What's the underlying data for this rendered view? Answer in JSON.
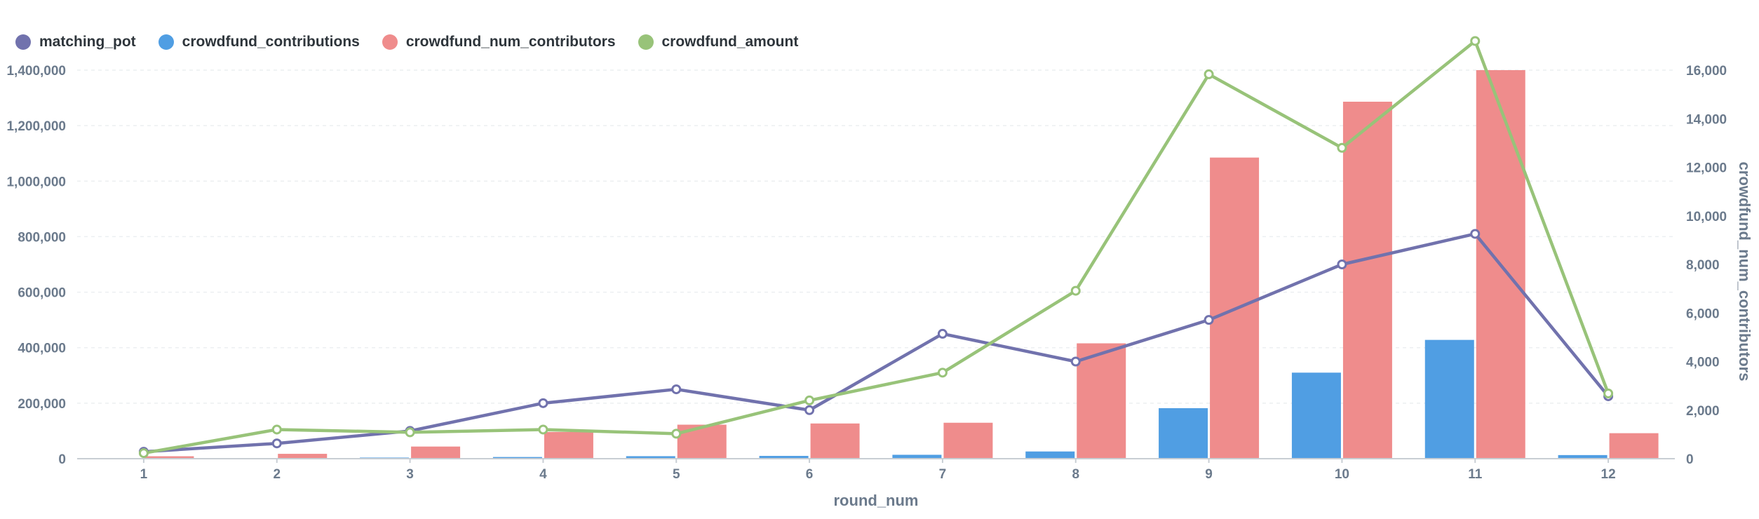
{
  "legend": [
    {
      "label": "matching_pot",
      "color": "#7172ad"
    },
    {
      "label": "crowdfund_contributions",
      "color": "#509ee3"
    },
    {
      "label": "crowdfund_num_contributors",
      "color": "#ef8c8c"
    },
    {
      "label": "crowdfund_amount",
      "color": "#98c379"
    }
  ],
  "chart_data": {
    "type": "bar",
    "xlabel": "round_num",
    "ylabel_left": "",
    "ylabel_right": "crowdfund_num_contributors",
    "categories": [
      "1",
      "2",
      "3",
      "4",
      "5",
      "6",
      "7",
      "8",
      "9",
      "10",
      "11",
      "12"
    ],
    "ylim_left": [
      0,
      1400000
    ],
    "yticks_left": [
      0,
      200000,
      400000,
      600000,
      800000,
      1000000,
      1200000,
      1400000
    ],
    "ytick_labels_left": [
      "0",
      "200,000",
      "400,000",
      "600,000",
      "800,000",
      "1,000,000",
      "1,200,000",
      "1,400,000"
    ],
    "ylim_right": [
      0,
      16000
    ],
    "yticks_right": [
      0,
      2000,
      4000,
      6000,
      8000,
      10000,
      12000,
      14000,
      16000
    ],
    "ytick_labels_right": [
      "0",
      "2,000",
      "4,000",
      "6,000",
      "8,000",
      "10,000",
      "12,000",
      "14,000",
      "16,000"
    ],
    "grid": true,
    "legend_position": "top-left",
    "series": [
      {
        "name": "matching_pot",
        "kind": "line",
        "axis": "left",
        "color": "#7172ad",
        "values": [
          25000,
          55000,
          100000,
          200000,
          250000,
          175000,
          450000,
          350000,
          500000,
          700000,
          810000,
          225000
        ]
      },
      {
        "name": "crowdfund_contributions",
        "kind": "bar",
        "axis": "left",
        "color": "#509ee3",
        "values": [
          1000,
          2000,
          4000,
          6000,
          9000,
          10000,
          14000,
          26000,
          182000,
          310000,
          428000,
          13000
        ]
      },
      {
        "name": "crowdfund_num_contributors",
        "kind": "bar",
        "axis": "right",
        "color": "#ef8c8c",
        "values": [
          100,
          200,
          500,
          1100,
          1400,
          1450,
          1480,
          4750,
          12400,
          14700,
          16000,
          1050
        ]
      },
      {
        "name": "crowdfund_amount",
        "kind": "line",
        "axis": "left",
        "color": "#98c379",
        "values": [
          20000,
          105000,
          95000,
          105000,
          90000,
          210000,
          310000,
          605000,
          1385000,
          1120000,
          1505000,
          235000
        ]
      }
    ]
  }
}
